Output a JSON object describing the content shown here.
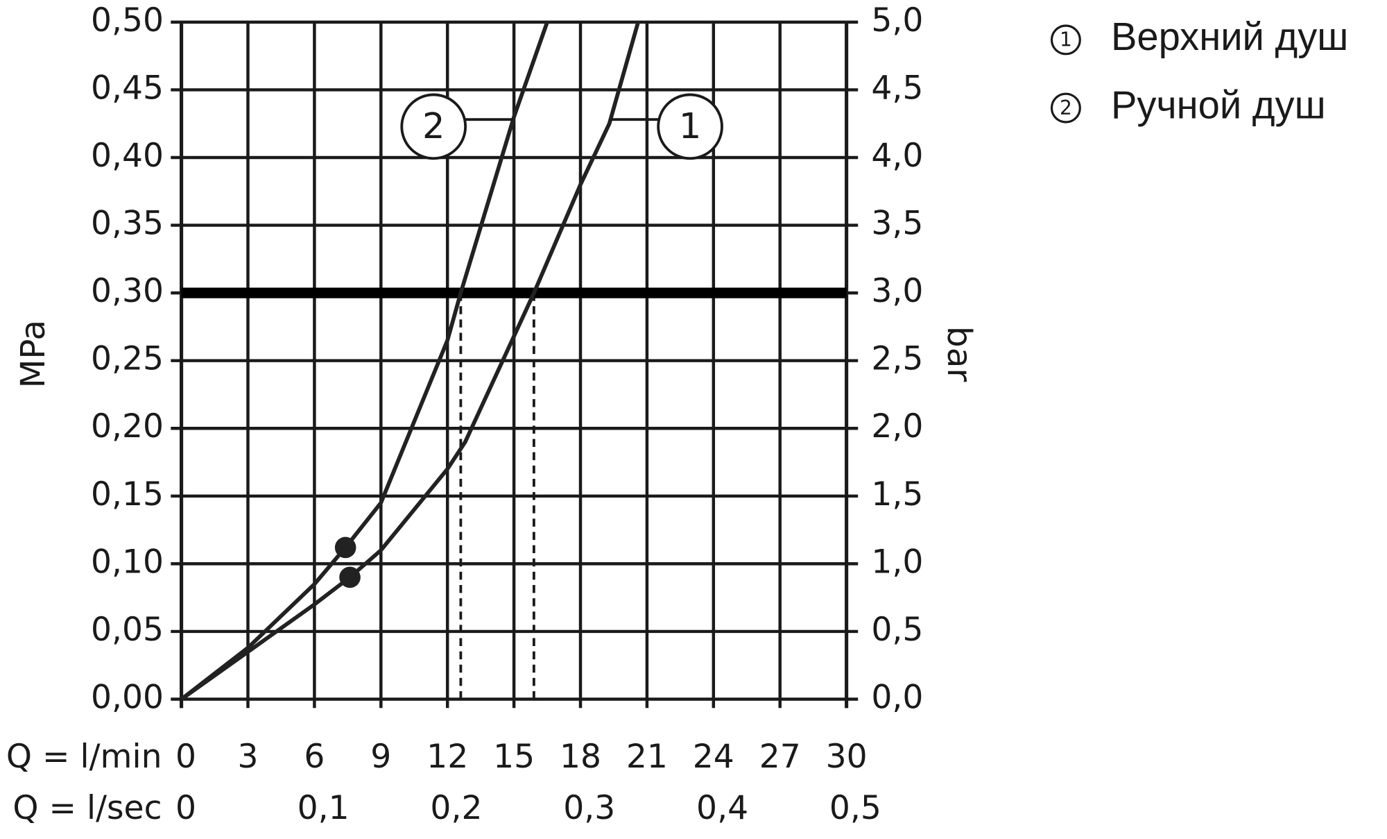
{
  "chart_data": {
    "type": "line",
    "xlabel": "Q = l/min",
    "x2label": "Q = l/sec",
    "ylabel": "MPa",
    "y2label": "bar",
    "xlim": [
      0,
      30
    ],
    "xticks": [
      0,
      3,
      6,
      9,
      12,
      15,
      18,
      21,
      24,
      27,
      30
    ],
    "x2lim": [
      0,
      0.5
    ],
    "x2ticks": [
      {
        "value": 0,
        "label": "0"
      },
      {
        "value": 0.1,
        "label": "0,1"
      },
      {
        "value": 0.2,
        "label": "0,2"
      },
      {
        "value": 0.3,
        "label": "0,3"
      },
      {
        "value": 0.4,
        "label": "0,4"
      },
      {
        "value": 0.5,
        "label": "0,5"
      }
    ],
    "ylim": [
      0,
      0.5
    ],
    "yticks": [
      {
        "value": 0,
        "label": "0,00"
      },
      {
        "value": 0.05,
        "label": "0,05"
      },
      {
        "value": 0.1,
        "label": "0,10"
      },
      {
        "value": 0.15,
        "label": "0,15"
      },
      {
        "value": 0.2,
        "label": "0,20"
      },
      {
        "value": 0.25,
        "label": "0,25"
      },
      {
        "value": 0.3,
        "label": "0,30"
      },
      {
        "value": 0.35,
        "label": "0,35"
      },
      {
        "value": 0.4,
        "label": "0,40"
      },
      {
        "value": 0.45,
        "label": "0,45"
      },
      {
        "value": 0.5,
        "label": "0,50"
      }
    ],
    "y2lim": [
      0,
      5
    ],
    "y2ticks": [
      {
        "value": 0,
        "label": "0,0"
      },
      {
        "value": 0.5,
        "label": "0,5"
      },
      {
        "value": 1,
        "label": "1,0"
      },
      {
        "value": 1.5,
        "label": "1,5"
      },
      {
        "value": 2,
        "label": "2,0"
      },
      {
        "value": 2.5,
        "label": "2,5"
      },
      {
        "value": 3,
        "label": "3,0"
      },
      {
        "value": 3.5,
        "label": "3,5"
      },
      {
        "value": 4,
        "label": "4,0"
      },
      {
        "value": 4.5,
        "label": "4,5"
      },
      {
        "value": 5,
        "label": "5,0"
      }
    ],
    "grid": true,
    "hline": 0.3,
    "vlines": [
      12.6,
      15.9
    ],
    "series": [
      {
        "name": "Верхний душ",
        "label": "1",
        "color": "#222222",
        "x": [
          0,
          3,
          6,
          7.6,
          9,
          12,
          12.8,
          15.9,
          18,
          19.3,
          20.6
        ],
        "values": [
          0,
          0.035,
          0.07,
          0.09,
          0.11,
          0.17,
          0.19,
          0.3,
          0.38,
          0.425,
          0.5
        ],
        "point": {
          "x": 7.6,
          "y": 0.09
        }
      },
      {
        "name": "Ручной душ",
        "label": "2",
        "color": "#222222",
        "x": [
          0,
          3,
          6,
          7.4,
          9,
          12,
          12.6,
          15,
          16.5
        ],
        "values": [
          0,
          0.038,
          0.085,
          0.112,
          0.145,
          0.265,
          0.3,
          0.43,
          0.5
        ],
        "point": {
          "x": 7.4,
          "y": 0.112
        }
      }
    ]
  }
}
